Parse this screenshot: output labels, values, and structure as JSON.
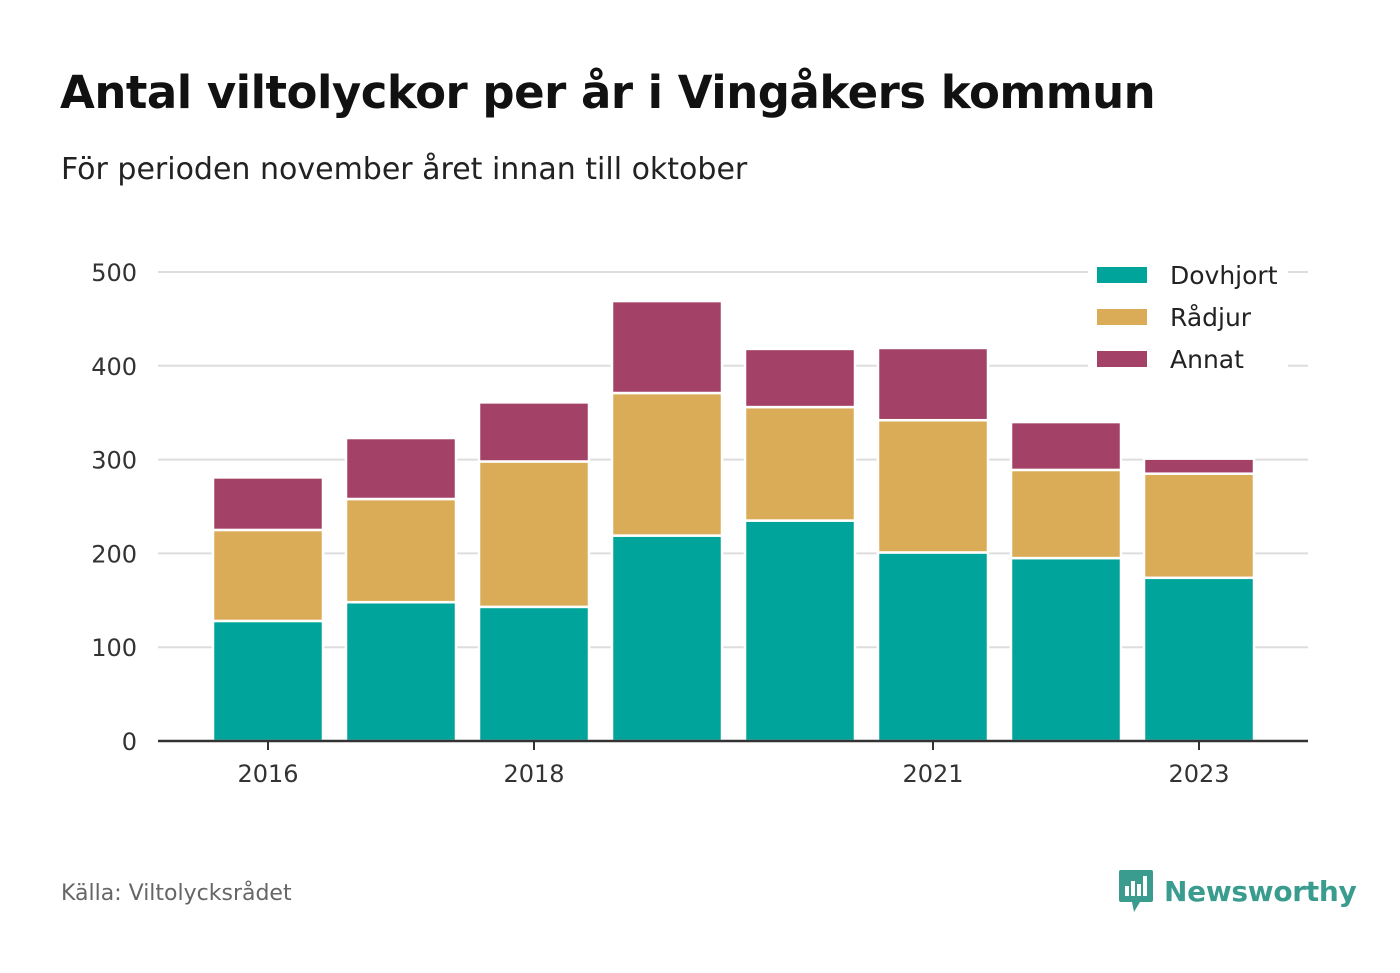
{
  "title": "Antal viltolyckor per år i Vingåkers kommun",
  "subtitle": "För perioden november året innan till oktober",
  "source": "Källa: Viltolycksrådet",
  "brand": {
    "name": "Newsworthy",
    "icon": "newsworthy-logo-icon",
    "color": "#3a9c8f"
  },
  "chart_data": {
    "type": "bar",
    "stacked": true,
    "categories": [
      "2016",
      "2017",
      "2018",
      "2019",
      "2020",
      "2021",
      "2022",
      "2023"
    ],
    "x_tick_labels": [
      "2016",
      "",
      "2018",
      "",
      "",
      "2021",
      "",
      "2023"
    ],
    "series": [
      {
        "name": "Dovhjort",
        "color": "#00a49a",
        "values": [
          128,
          148,
          143,
          219,
          235,
          201,
          195,
          174
        ]
      },
      {
        "name": "Rådjur",
        "color": "#dbac58",
        "values": [
          97,
          110,
          155,
          152,
          121,
          141,
          94,
          111
        ]
      },
      {
        "name": "Annat",
        "color": "#a44166",
        "values": [
          56,
          65,
          63,
          98,
          62,
          77,
          51,
          16
        ]
      }
    ],
    "ylim": [
      0,
      500
    ],
    "y_ticks": [
      0,
      100,
      200,
      300,
      400,
      500
    ],
    "grid": true,
    "legend": "top-right"
  }
}
